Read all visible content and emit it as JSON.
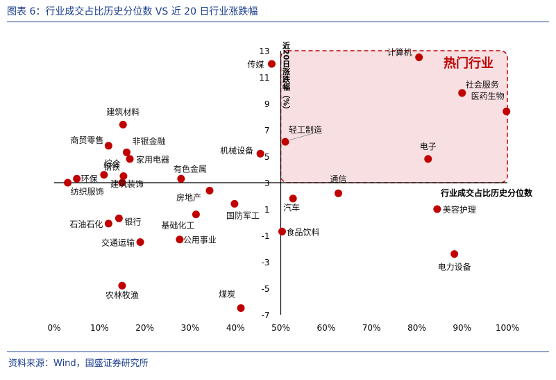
{
  "figure": {
    "title": "图表 6：行业成交占比历史分位数 VS 近 20 日行业涨跌幅",
    "source": "资料来源：Wind，国盛证券研究所"
  },
  "chart_data": {
    "type": "scatter",
    "xlabel": "行业成交占比历史分位数",
    "ylabel": "近20日涨跌幅（%）",
    "xlim": [
      0,
      1
    ],
    "ylim": [
      -7,
      13
    ],
    "xticks": [
      0,
      0.1,
      0.2,
      0.3,
      0.4,
      0.5,
      0.6,
      0.7,
      0.8,
      0.9,
      1.0
    ],
    "xtick_labels": [
      "0%",
      "10%",
      "20%",
      "30%",
      "40%",
      "50%",
      "60%",
      "70%",
      "80%",
      "90%",
      "100%"
    ],
    "yticks": [
      -7,
      -5,
      -3,
      -1,
      1,
      3,
      5,
      7,
      9,
      11,
      13
    ],
    "ytick_labels": [
      "-7",
      "-5",
      "-3",
      "-1",
      "1",
      "3",
      "5",
      "7",
      "9",
      "11",
      "13"
    ],
    "hot_zone": {
      "label": "热门行业",
      "x_range": [
        0.5,
        1.0
      ],
      "y_range": [
        3,
        13
      ]
    },
    "point_color": "#c00000",
    "points": [
      {
        "name": "传媒",
        "x": 0.48,
        "y": 12.0
      },
      {
        "name": "计算机",
        "x": 0.805,
        "y": 12.5
      },
      {
        "name": "社会服务",
        "x": 0.9,
        "y": 9.8
      },
      {
        "name": "医药生物",
        "x": 0.998,
        "y": 8.4
      },
      {
        "name": "建筑材料",
        "x": 0.152,
        "y": 7.4
      },
      {
        "name": "轻工制造",
        "x": 0.51,
        "y": 6.1
      },
      {
        "name": "商贸零售",
        "x": 0.12,
        "y": 5.8
      },
      {
        "name": "非银金融",
        "x": 0.16,
        "y": 5.3
      },
      {
        "name": "机械设备",
        "x": 0.455,
        "y": 5.2
      },
      {
        "name": "家用电器",
        "x": 0.167,
        "y": 4.8
      },
      {
        "name": "电子",
        "x": 0.825,
        "y": 4.8
      },
      {
        "name": "综合",
        "x": 0.11,
        "y": 3.6
      },
      {
        "name": "钢铁",
        "x": 0.153,
        "y": 3.5
      },
      {
        "name": "环保",
        "x": 0.05,
        "y": 3.3
      },
      {
        "name": "有色金属",
        "x": 0.28,
        "y": 3.3
      },
      {
        "name": "纺织服饰",
        "x": 0.03,
        "y": 3.0
      },
      {
        "name": "建筑装饰",
        "x": 0.15,
        "y": 3.0
      },
      {
        "name": "房地产",
        "x": 0.343,
        "y": 2.4
      },
      {
        "name": "通信",
        "x": 0.627,
        "y": 2.2
      },
      {
        "name": "汽车",
        "x": 0.527,
        "y": 1.8
      },
      {
        "name": "国防军工",
        "x": 0.398,
        "y": 1.4
      },
      {
        "name": "美容护理",
        "x": 0.845,
        "y": 1.0
      },
      {
        "name": "基础化工",
        "x": 0.313,
        "y": 0.6
      },
      {
        "name": "银行",
        "x": 0.143,
        "y": 0.3
      },
      {
        "name": "石油石化",
        "x": 0.12,
        "y": -0.1
      },
      {
        "name": "食品饮料",
        "x": 0.503,
        "y": -0.7
      },
      {
        "name": "公用事业",
        "x": 0.277,
        "y": -1.3
      },
      {
        "name": "交通运输",
        "x": 0.19,
        "y": -1.5
      },
      {
        "name": "电力设备",
        "x": 0.883,
        "y": -2.4
      },
      {
        "name": "农林牧渔",
        "x": 0.15,
        "y": -4.8
      },
      {
        "name": "煤炭",
        "x": 0.412,
        "y": -6.5
      }
    ]
  }
}
